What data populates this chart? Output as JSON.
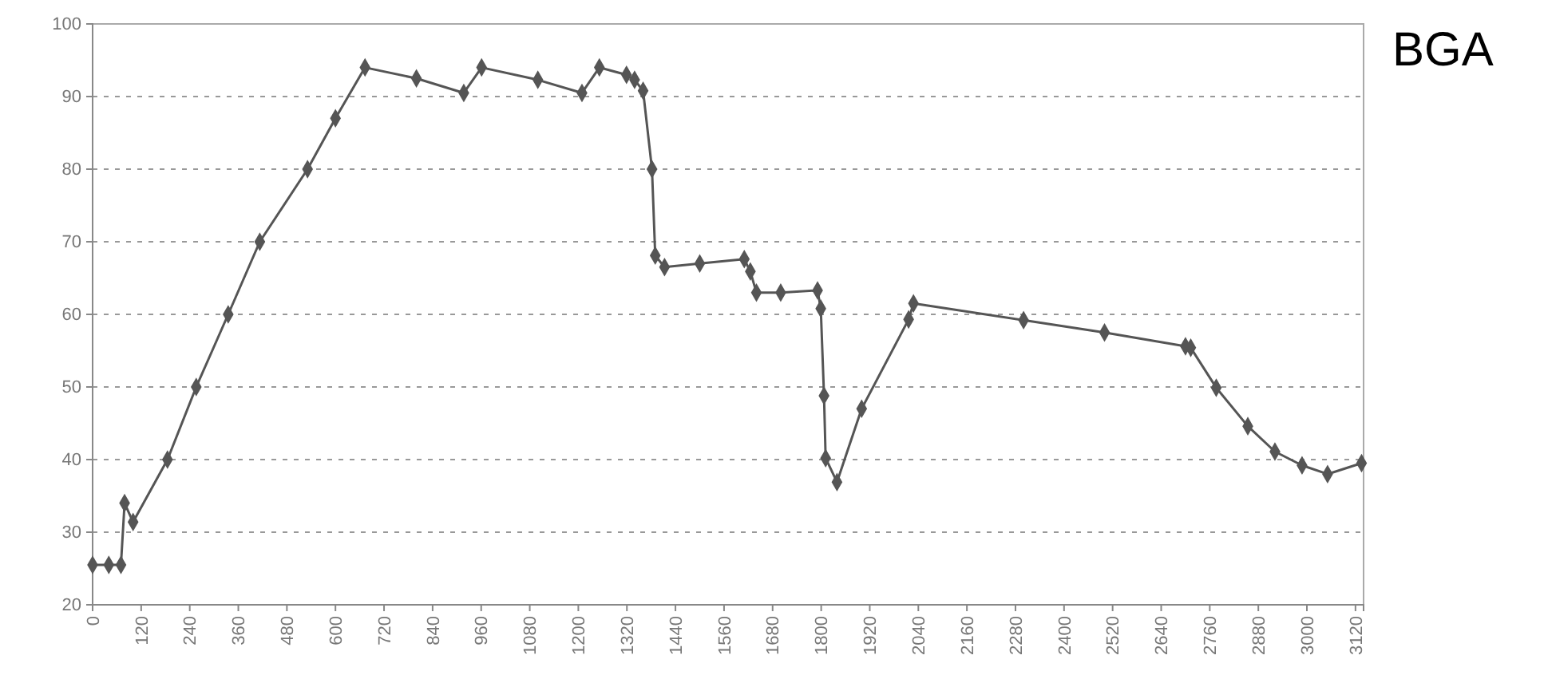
{
  "chart_data": {
    "type": "line",
    "annotations": [
      "BGA"
    ],
    "x": [
      0,
      40,
      70,
      79,
      100,
      185,
      256,
      335,
      413,
      531,
      600,
      673,
      800,
      917,
      961,
      1100,
      1209,
      1252,
      1319,
      1339,
      1360,
      1382,
      1390,
      1413,
      1500,
      1610,
      1625,
      1640,
      1700,
      1791,
      1799,
      1807,
      1811,
      1839,
      1900,
      2016,
      2028,
      2300,
      2500,
      2700,
      2713,
      2776,
      2854,
      2921,
      2988,
      3051,
      3135
    ],
    "series": [
      {
        "color": "#555555",
        "values": [
          25.5,
          25.5,
          25.5,
          34,
          31.4,
          40,
          50,
          60,
          70,
          80,
          87,
          94,
          92.5,
          90.5,
          94,
          92.3,
          90.5,
          94,
          93,
          92.3,
          90.8,
          80,
          68.1,
          66.5,
          67,
          67.6,
          65.9,
          63,
          63,
          63.3,
          60.8,
          48.8,
          40.2,
          36.9,
          47,
          59.3,
          61.5,
          59.2,
          57.5,
          55.6,
          55.4,
          49.9,
          44.6,
          41.1,
          39.2,
          38,
          39.5
        ]
      }
    ],
    "xlim": [
      0,
      3140
    ],
    "xticks": [
      0,
      120,
      240,
      360,
      480,
      600,
      720,
      840,
      960,
      1080,
      1200,
      1320,
      1440,
      1560,
      1680,
      1800,
      1920,
      2040,
      2160,
      2280,
      2400,
      2520,
      2640,
      2760,
      2880,
      3000,
      3120
    ],
    "ylim": [
      20,
      100
    ],
    "yticks": [
      20,
      30,
      40,
      50,
      60,
      70,
      80,
      90,
      100
    ],
    "grid": "y",
    "marker": "diamond",
    "line_style": "solid"
  }
}
